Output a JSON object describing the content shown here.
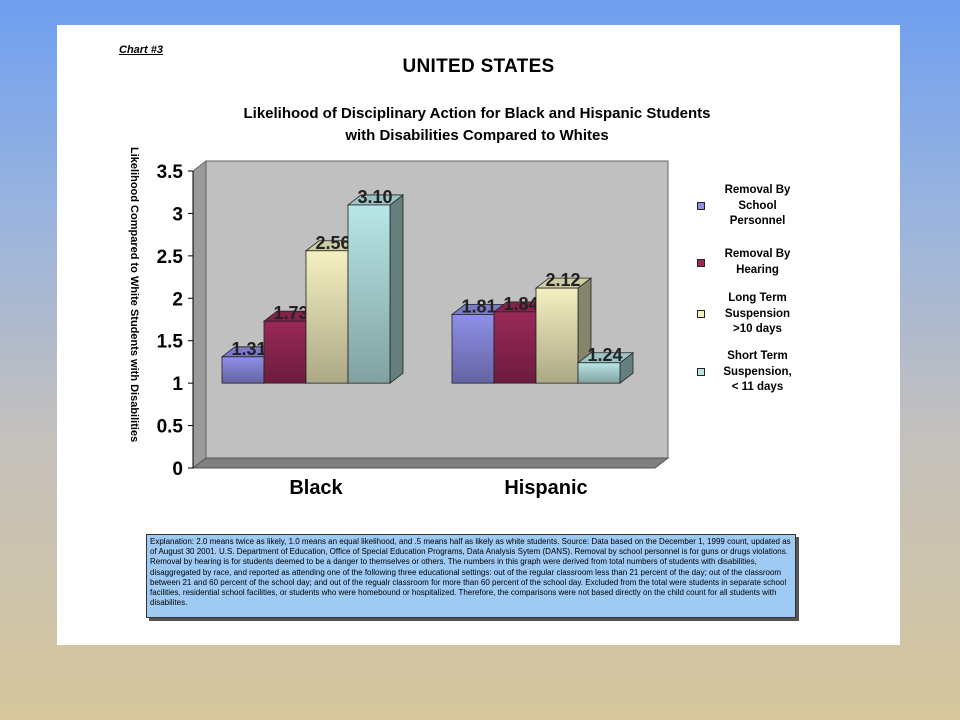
{
  "chart_label": "Chart #3",
  "main_title": "UNITED STATES",
  "chart_data": {
    "type": "bar",
    "title": "Likelihood of Disciplinary Action for Black and Hispanic Students with Disabilities Compared to Whites",
    "title_lines": [
      "Likelihood of Disciplinary Action for Black and Hispanic Students",
      "with Disabilities Compared to Whites"
    ],
    "xlabel": "",
    "ylabel": "Likelihood Compared to White Students with Disabilities",
    "categories": [
      "Black",
      "Hispanic"
    ],
    "ylim": [
      0,
      3.5
    ],
    "yticks": [
      "0",
      "0.5",
      "1",
      "1.5",
      "2",
      "2.5",
      "3",
      "3.5"
    ],
    "grid": false,
    "legend_position": "right",
    "baseline": 1,
    "series": [
      {
        "name": "Removal By School Personnel",
        "color": "#8f8fe8",
        "values": [
          1.31,
          1.81
        ],
        "labels": [
          "1.31",
          "1.81"
        ]
      },
      {
        "name": "Removal By Hearing",
        "color": "#9a2858",
        "values": [
          1.73,
          1.84
        ],
        "labels": [
          "1.73",
          "1.84"
        ]
      },
      {
        "name": "Long Term Suspension >10 days",
        "color": "#f4f0c0",
        "values": [
          2.56,
          2.12
        ],
        "labels": [
          "2.56",
          "2.12"
        ]
      },
      {
        "name": "Short Term Suspension, < 11 days",
        "color": "#b8e6e6",
        "values": [
          3.1,
          1.24
        ],
        "labels": [
          "3.10",
          "1.24"
        ]
      }
    ]
  },
  "legend": [
    {
      "lines": [
        "Removal By",
        "School",
        "Personnel"
      ],
      "color": "#8f8fe8"
    },
    {
      "lines": [
        "Removal By",
        "Hearing"
      ],
      "color": "#9a2858"
    },
    {
      "lines": [
        "Long Term",
        "Suspension",
        ">10 days"
      ],
      "color": "#f4f0c0"
    },
    {
      "lines": [
        "Short Term",
        "Suspension,",
        "< 11 days"
      ],
      "color": "#b8e6e6"
    }
  ],
  "explanation": "Explanation: 2.0 means twice as likely, 1.0 means an equal likelihood, and .5 means half as likely as white students.  Source: Data based on the December 1, 1999 count, updated as of August 30 2001. U.S. Department of Education, Office of Special Education Programs, Data Analysis Sytem (DANS).  Removal by school personnel is for guns or drugs violations.  Removal by hearing is for students deemed to be a danger to themselves or others.  The numbers in this graph were derived from total numbers of students with disabilities, disaggregated by race, and reported as attending one of the following three educational settings: out of the regular classroom less than 21 percent  of the day; out of the classroom between 21 and 60 percent of the school day; and out of the regualr classroom for more than 60 percent of the school day.  Excluded from the total were students in separate school facilities, residential school facilities, or students who were homebound or hospitalized.  Therefore, the comparisons were not based directly on the child count for all students with disabilites."
}
